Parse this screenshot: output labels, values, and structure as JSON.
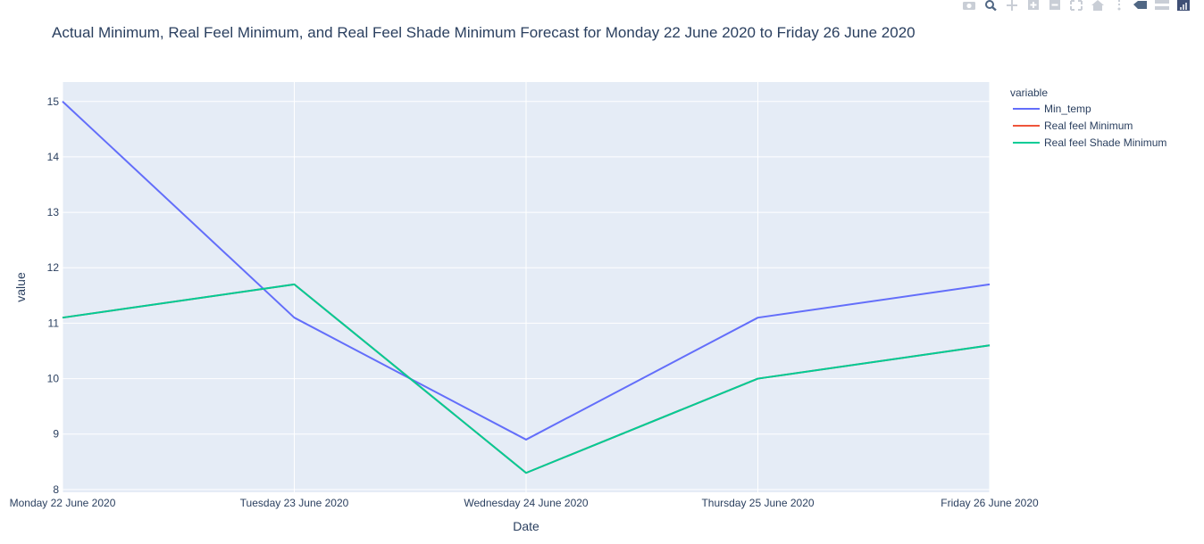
{
  "toolbar": {
    "icons": [
      "camera-icon",
      "zoom-icon",
      "pan-icon",
      "zoom-in-icon",
      "zoom-out-icon",
      "autoscale-icon",
      "home-icon",
      "spike-lines-icon",
      "hover-closest-icon",
      "hover-compare-icon",
      "plotly-logo-icon"
    ]
  },
  "colors": {
    "plot_bg": "#E5ECF6",
    "grid": "#ffffff",
    "text": "#2a3f5f",
    "min_temp": "#636EFA",
    "real_feel_min": "#EF553B",
    "real_feel_shade_min": "#00CC96"
  },
  "chart_data": {
    "type": "line",
    "title": "Actual Minimum, Real Feel Minimum, and Real Feel Shade Minimum Forecast for Monday 22 June 2020 to Friday 26 June 2020",
    "xlabel": "Date",
    "ylabel": "value",
    "categories": [
      "Monday 22 June 2020",
      "Tuesday 23 June 2020",
      "Wednesday 24 June 2020",
      "Thursday 25 June 2020",
      "Friday 26 June 2020"
    ],
    "ylim": [
      7.95,
      15.35
    ],
    "yticks": [
      8,
      9,
      10,
      11,
      12,
      13,
      14,
      15
    ],
    "grid": true,
    "legend": {
      "title": "variable",
      "position": "top-right"
    },
    "series": [
      {
        "name": "Min_temp",
        "color": "#636EFA",
        "values": [
          15,
          11.1,
          8.9,
          11.1,
          11.7
        ]
      },
      {
        "name": "Real feel Minimum",
        "color": "#EF553B",
        "values": [
          11.1,
          11.7,
          8.3,
          10,
          10.6
        ]
      },
      {
        "name": "Real feel Shade Minimum",
        "color": "#00CC96",
        "values": [
          11.1,
          11.7,
          8.3,
          10,
          10.6
        ]
      }
    ]
  }
}
